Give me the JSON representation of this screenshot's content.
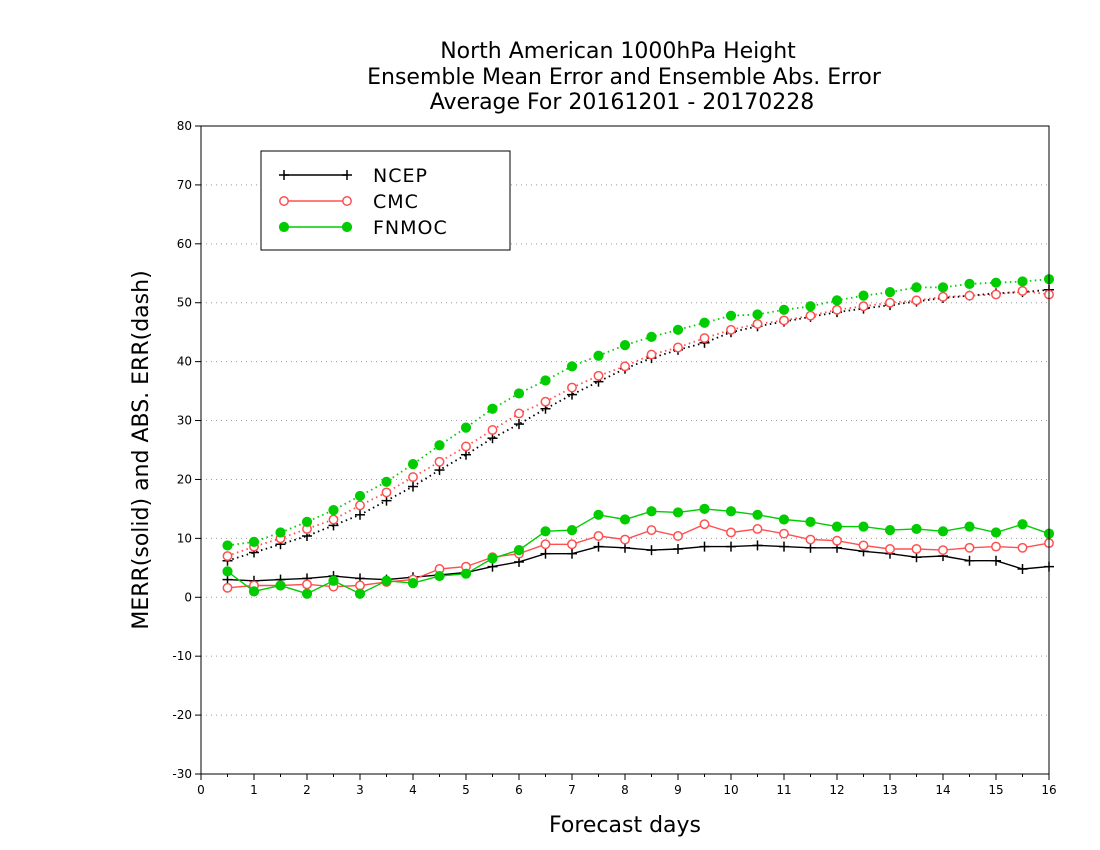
{
  "chart_data": {
    "type": "line",
    "title": [
      "North American 1000hPa Height",
      "Ensemble Mean Error and Ensemble Abs. Error",
      "Average For 20161201 - 20170228"
    ],
    "xlabel": "Forecast days",
    "ylabel": "MERR(solid) and ABS. ERR(dash)",
    "xlim": [
      0,
      16
    ],
    "ylim": [
      -30,
      80
    ],
    "xticks": [
      0,
      1,
      2,
      3,
      4,
      5,
      6,
      7,
      8,
      9,
      10,
      11,
      12,
      13,
      14,
      15,
      16
    ],
    "yticks": [
      -30,
      -20,
      -10,
      0,
      10,
      20,
      30,
      40,
      50,
      60,
      70,
      80
    ],
    "grid": "horizontal dotted",
    "legend": "top-left",
    "x": [
      0.5,
      1,
      1.5,
      2,
      2.5,
      3,
      3.5,
      4,
      4.5,
      5,
      5.5,
      6,
      6.5,
      7,
      7.5,
      8,
      8.5,
      9,
      9.5,
      10,
      10.5,
      11,
      11.5,
      12,
      12.5,
      13,
      13.5,
      14,
      14.5,
      15,
      15.5,
      16
    ],
    "series": [
      {
        "name": "NCEP",
        "color": "#000000",
        "marker": "plus",
        "merr": [
          3.0,
          2.8,
          3.0,
          3.2,
          3.6,
          3.2,
          3.0,
          3.4,
          3.8,
          4.2,
          5.2,
          6.0,
          7.4,
          7.4,
          8.6,
          8.4,
          8.0,
          8.2,
          8.6,
          8.6,
          8.8,
          8.6,
          8.4,
          8.4,
          7.8,
          7.4,
          6.8,
          7.0,
          6.2,
          6.2,
          4.8,
          5.2
        ],
        "abs_err": [
          6.2,
          7.6,
          9.0,
          10.4,
          12.2,
          14.0,
          16.4,
          18.8,
          21.6,
          24.2,
          27.0,
          29.4,
          32.0,
          34.4,
          36.6,
          38.8,
          40.6,
          42.0,
          43.2,
          45.0,
          46.0,
          46.8,
          47.6,
          48.4,
          49.0,
          49.6,
          50.2,
          50.8,
          51.2,
          51.6,
          51.8,
          52.2
        ]
      },
      {
        "name": "CMC",
        "color": "#ff5050",
        "marker": "circle-open",
        "merr": [
          1.6,
          2.0,
          2.0,
          2.2,
          1.8,
          2.0,
          2.6,
          3.0,
          4.8,
          5.2,
          6.8,
          7.4,
          9.0,
          9.0,
          10.4,
          9.8,
          11.4,
          10.4,
          12.4,
          11.0,
          11.6,
          10.8,
          9.8,
          9.6,
          8.8,
          8.2,
          8.2,
          8.0,
          8.4,
          8.6,
          8.4,
          9.2
        ],
        "abs_err": [
          7.0,
          8.6,
          10.0,
          11.6,
          13.2,
          15.6,
          17.8,
          20.4,
          23.0,
          25.6,
          28.4,
          31.2,
          33.2,
          35.6,
          37.6,
          39.2,
          41.2,
          42.4,
          44.0,
          45.4,
          46.4,
          47.0,
          47.8,
          48.8,
          49.4,
          50.0,
          50.4,
          51.0,
          51.2,
          51.4,
          52.0,
          51.4
        ]
      },
      {
        "name": "FNMOC",
        "color": "#00cc00",
        "marker": "circle-filled",
        "merr": [
          4.4,
          1.0,
          2.0,
          0.6,
          2.8,
          0.6,
          2.8,
          2.4,
          3.6,
          4.0,
          6.6,
          8.0,
          11.2,
          11.4,
          14.0,
          13.2,
          14.6,
          14.4,
          15.0,
          14.6,
          14.0,
          13.2,
          12.8,
          12.0,
          12.0,
          11.4,
          11.6,
          11.2,
          12.0,
          11.0,
          12.4,
          10.8
        ],
        "abs_err": [
          8.8,
          9.4,
          11.0,
          12.8,
          14.8,
          17.2,
          19.6,
          22.6,
          25.8,
          28.8,
          32.0,
          34.6,
          36.8,
          39.2,
          41.0,
          42.8,
          44.2,
          45.4,
          46.6,
          47.8,
          48.0,
          48.8,
          49.4,
          50.4,
          51.2,
          51.8,
          52.6,
          52.6,
          53.2,
          53.4,
          53.6,
          54.0
        ]
      }
    ]
  }
}
